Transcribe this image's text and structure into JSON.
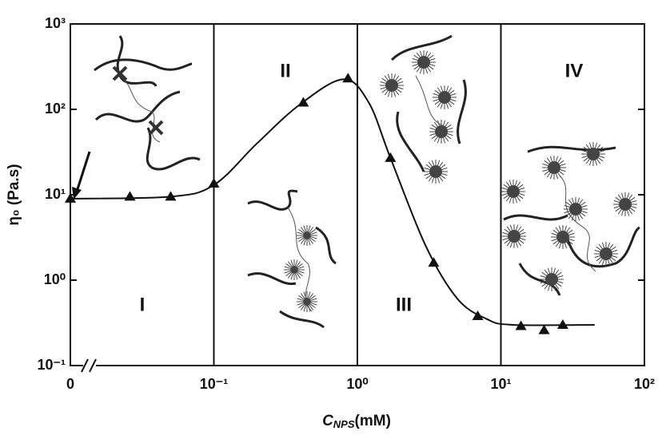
{
  "chart_data": {
    "type": "scatter",
    "x_label": {
      "main": "C",
      "sub": "NPS",
      "unit": "(mM)"
    },
    "y_label": "η₀ (Pa.s)",
    "xscale": "log",
    "yscale": "log",
    "x_axis_break": true,
    "xlim": [
      0,
      100
    ],
    "ylim": [
      0.1,
      1000
    ],
    "xticks": [
      0,
      {
        "value": 0.1,
        "label": "10⁻¹"
      },
      {
        "value": 1,
        "label": "10⁰"
      },
      {
        "value": 10,
        "label": "10¹"
      },
      {
        "value": 100,
        "label": "10²"
      }
    ],
    "yticks": [
      {
        "value": 0.1,
        "label": "10⁻¹"
      },
      {
        "value": 1,
        "label": "10⁰"
      },
      {
        "value": 10,
        "label": "10¹"
      },
      {
        "value": 100,
        "label": "10²"
      },
      {
        "value": 1000,
        "label": "10³"
      }
    ],
    "region_boundaries": [
      0.1,
      1,
      10
    ],
    "annotations": [
      "I",
      "II",
      "III",
      "IV"
    ],
    "series": [
      {
        "color": "#111111",
        "marker": "triangle",
        "x": [
          0,
          0.026,
          0.05,
          0.1,
          0.42,
          0.86,
          1.7,
          3.4,
          6.9,
          13.8,
          20,
          27
        ],
        "values": [
          9,
          9.5,
          9.5,
          13.5,
          120,
          230,
          27,
          1.6,
          0.38,
          0.29,
          0.26,
          0.3
        ]
      },
      {
        "color": "#111111",
        "marker": "line",
        "x": [
          0,
          0.05,
          0.1,
          0.2,
          0.4,
          0.8,
          1.2,
          1.7,
          3,
          5,
          8,
          12,
          45
        ],
        "values": [
          9,
          9.5,
          13,
          40,
          115,
          225,
          120,
          27,
          2.5,
          0.6,
          0.35,
          0.3,
          0.3
        ]
      }
    ]
  }
}
